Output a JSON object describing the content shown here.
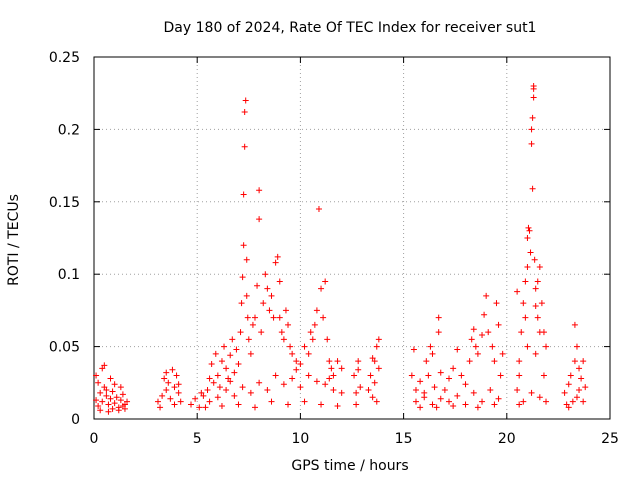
{
  "chart_data": {
    "type": "scatter",
    "title": "Day 180 of 2024, Rate Of TEC Index for receiver sut1",
    "xlabel": "GPS time / hours",
    "ylabel": "ROTI / TECUs",
    "xlim": [
      0,
      25
    ],
    "ylim": [
      0,
      0.25
    ],
    "xticks": [
      0,
      5,
      10,
      15,
      20,
      25
    ],
    "yticks": [
      0,
      0.05,
      0.1,
      0.15,
      0.2,
      0.25
    ],
    "xtick_labels": [
      "0",
      "5",
      "10",
      "15",
      "20",
      "25"
    ],
    "ytick_labels": [
      "0",
      "0.05",
      "0.1",
      "0.15",
      "0.2",
      "0.25"
    ],
    "grid": true,
    "marker": "+",
    "color": "#ff0000",
    "series": [
      {
        "name": "ROTI",
        "points": [
          [
            0.1,
            0.013
          ],
          [
            0.2,
            0.009
          ],
          [
            0.3,
            0.018
          ],
          [
            0.4,
            0.012
          ],
          [
            0.5,
            0.022
          ],
          [
            0.6,
            0.016
          ],
          [
            0.7,
            0.01
          ],
          [
            0.8,
            0.014
          ],
          [
            0.9,
            0.019
          ],
          [
            1.0,
            0.011
          ],
          [
            1.1,
            0.015
          ],
          [
            1.2,
            0.008
          ],
          [
            1.3,
            0.013
          ],
          [
            1.4,
            0.017
          ],
          [
            1.5,
            0.01
          ],
          [
            1.6,
            0.012
          ],
          [
            0.2,
            0.025
          ],
          [
            0.4,
            0.035
          ],
          [
            0.5,
            0.037
          ],
          [
            0.8,
            0.028
          ],
          [
            1.0,
            0.024
          ],
          [
            1.3,
            0.022
          ],
          [
            0.3,
            0.006
          ],
          [
            0.7,
            0.005
          ],
          [
            1.2,
            0.006
          ],
          [
            1.5,
            0.007
          ],
          [
            0.1,
            0.03
          ],
          [
            0.6,
            0.02
          ],
          [
            0.9,
            0.007
          ],
          [
            1.4,
            0.009
          ],
          [
            3.1,
            0.012
          ],
          [
            3.3,
            0.016
          ],
          [
            3.5,
            0.02
          ],
          [
            3.7,
            0.014
          ],
          [
            3.9,
            0.022
          ],
          [
            4.1,
            0.018
          ],
          [
            4.2,
            0.012
          ],
          [
            3.4,
            0.028
          ],
          [
            3.8,
            0.034
          ],
          [
            4.0,
            0.03
          ],
          [
            3.6,
            0.025
          ],
          [
            3.2,
            0.008
          ],
          [
            4.1,
            0.024
          ],
          [
            3.9,
            0.01
          ],
          [
            3.5,
            0.032
          ],
          [
            4.7,
            0.01
          ],
          [
            4.9,
            0.014
          ],
          [
            5.1,
            0.008
          ],
          [
            5.3,
            0.016
          ],
          [
            5.5,
            0.02
          ],
          [
            5.6,
            0.028
          ],
          [
            5.7,
            0.038
          ],
          [
            5.8,
            0.025
          ],
          [
            5.9,
            0.045
          ],
          [
            6.0,
            0.03
          ],
          [
            6.1,
            0.022
          ],
          [
            6.2,
            0.04
          ],
          [
            6.3,
            0.05
          ],
          [
            6.4,
            0.035
          ],
          [
            6.5,
            0.028
          ],
          [
            6.6,
            0.044
          ],
          [
            6.7,
            0.055
          ],
          [
            6.8,
            0.032
          ],
          [
            6.9,
            0.048
          ],
          [
            7.0,
            0.038
          ],
          [
            7.1,
            0.06
          ],
          [
            7.15,
            0.08
          ],
          [
            7.2,
            0.098
          ],
          [
            7.25,
            0.12
          ],
          [
            7.25,
            0.155
          ],
          [
            7.3,
            0.188
          ],
          [
            7.3,
            0.212
          ],
          [
            7.35,
            0.22
          ],
          [
            7.4,
            0.11
          ],
          [
            7.4,
            0.085
          ],
          [
            7.45,
            0.07
          ],
          [
            7.5,
            0.055
          ],
          [
            7.6,
            0.045
          ],
          [
            7.7,
            0.065
          ],
          [
            7.8,
            0.07
          ],
          [
            7.9,
            0.092
          ],
          [
            8.0,
            0.158
          ],
          [
            8.0,
            0.138
          ],
          [
            8.1,
            0.06
          ],
          [
            8.2,
            0.08
          ],
          [
            8.3,
            0.1
          ],
          [
            8.4,
            0.09
          ],
          [
            8.5,
            0.075
          ],
          [
            8.6,
            0.085
          ],
          [
            8.7,
            0.07
          ],
          [
            8.8,
            0.108
          ],
          [
            8.9,
            0.112
          ],
          [
            9.0,
            0.095
          ],
          [
            9.0,
            0.07
          ],
          [
            9.1,
            0.06
          ],
          [
            9.2,
            0.055
          ],
          [
            9.3,
            0.075
          ],
          [
            9.4,
            0.065
          ],
          [
            9.5,
            0.05
          ],
          [
            9.6,
            0.045
          ],
          [
            9.8,
            0.04
          ],
          [
            10.0,
            0.038
          ],
          [
            10.2,
            0.05
          ],
          [
            10.4,
            0.045
          ],
          [
            10.5,
            0.06
          ],
          [
            10.6,
            0.055
          ],
          [
            10.7,
            0.065
          ],
          [
            10.8,
            0.075
          ],
          [
            10.9,
            0.145
          ],
          [
            11.0,
            0.09
          ],
          [
            11.1,
            0.07
          ],
          [
            11.2,
            0.095
          ],
          [
            11.3,
            0.055
          ],
          [
            11.4,
            0.04
          ],
          [
            11.5,
            0.035
          ],
          [
            11.6,
            0.03
          ],
          [
            11.8,
            0.04
          ],
          [
            12.0,
            0.035
          ],
          [
            5.2,
            0.018
          ],
          [
            5.6,
            0.012
          ],
          [
            6.0,
            0.015
          ],
          [
            6.4,
            0.02
          ],
          [
            6.8,
            0.016
          ],
          [
            7.2,
            0.022
          ],
          [
            7.6,
            0.018
          ],
          [
            8.0,
            0.025
          ],
          [
            8.4,
            0.02
          ],
          [
            8.8,
            0.03
          ],
          [
            9.2,
            0.024
          ],
          [
            9.6,
            0.028
          ],
          [
            10.0,
            0.022
          ],
          [
            10.4,
            0.03
          ],
          [
            10.8,
            0.026
          ],
          [
            11.2,
            0.024
          ],
          [
            11.6,
            0.02
          ],
          [
            12.0,
            0.018
          ],
          [
            5.4,
            0.008
          ],
          [
            6.2,
            0.009
          ],
          [
            7.0,
            0.01
          ],
          [
            7.8,
            0.008
          ],
          [
            8.6,
            0.012
          ],
          [
            9.4,
            0.01
          ],
          [
            10.2,
            0.012
          ],
          [
            11.0,
            0.01
          ],
          [
            11.8,
            0.009
          ],
          [
            6.6,
            0.026
          ],
          [
            9.8,
            0.034
          ],
          [
            11.4,
            0.028
          ],
          [
            12.6,
            0.03
          ],
          [
            12.7,
            0.018
          ],
          [
            12.8,
            0.04
          ],
          [
            12.9,
            0.022
          ],
          [
            12.7,
            0.01
          ],
          [
            12.8,
            0.034
          ],
          [
            13.3,
            0.02
          ],
          [
            13.4,
            0.03
          ],
          [
            13.5,
            0.015
          ],
          [
            13.6,
            0.04
          ],
          [
            13.7,
            0.05
          ],
          [
            13.8,
            0.035
          ],
          [
            13.6,
            0.025
          ],
          [
            13.8,
            0.055
          ],
          [
            13.7,
            0.012
          ],
          [
            13.5,
            0.042
          ],
          [
            15.4,
            0.03
          ],
          [
            15.5,
            0.048
          ],
          [
            15.6,
            0.02
          ],
          [
            15.8,
            0.026
          ],
          [
            16.0,
            0.018
          ],
          [
            16.1,
            0.04
          ],
          [
            16.2,
            0.03
          ],
          [
            16.3,
            0.05
          ],
          [
            16.4,
            0.045
          ],
          [
            16.5,
            0.022
          ],
          [
            16.7,
            0.07
          ],
          [
            16.7,
            0.06
          ],
          [
            16.8,
            0.032
          ],
          [
            17.0,
            0.02
          ],
          [
            17.2,
            0.028
          ],
          [
            17.4,
            0.035
          ],
          [
            17.6,
            0.048
          ],
          [
            17.8,
            0.03
          ],
          [
            18.0,
            0.024
          ],
          [
            18.2,
            0.04
          ],
          [
            18.3,
            0.055
          ],
          [
            18.4,
            0.062
          ],
          [
            18.5,
            0.05
          ],
          [
            18.6,
            0.045
          ],
          [
            18.8,
            0.058
          ],
          [
            18.9,
            0.072
          ],
          [
            19.0,
            0.085
          ],
          [
            19.1,
            0.06
          ],
          [
            19.3,
            0.05
          ],
          [
            19.4,
            0.04
          ],
          [
            19.5,
            0.08
          ],
          [
            19.6,
            0.065
          ],
          [
            19.7,
            0.03
          ],
          [
            19.8,
            0.045
          ],
          [
            15.6,
            0.012
          ],
          [
            16.0,
            0.015
          ],
          [
            16.4,
            0.01
          ],
          [
            16.8,
            0.014
          ],
          [
            17.2,
            0.012
          ],
          [
            17.6,
            0.016
          ],
          [
            18.0,
            0.01
          ],
          [
            18.4,
            0.018
          ],
          [
            18.8,
            0.012
          ],
          [
            19.2,
            0.02
          ],
          [
            19.6,
            0.014
          ],
          [
            15.8,
            0.008
          ],
          [
            16.6,
            0.008
          ],
          [
            17.4,
            0.009
          ],
          [
            18.6,
            0.008
          ],
          [
            19.4,
            0.01
          ],
          [
            20.5,
            0.02
          ],
          [
            20.6,
            0.04
          ],
          [
            20.7,
            0.06
          ],
          [
            20.8,
            0.08
          ],
          [
            20.9,
            0.095
          ],
          [
            20.9,
            0.07
          ],
          [
            21.0,
            0.105
          ],
          [
            21.0,
            0.125
          ],
          [
            21.05,
            0.132
          ],
          [
            21.1,
            0.13
          ],
          [
            21.15,
            0.115
          ],
          [
            21.2,
            0.19
          ],
          [
            21.2,
            0.2
          ],
          [
            21.25,
            0.208
          ],
          [
            21.25,
            0.159
          ],
          [
            21.3,
            0.228
          ],
          [
            21.3,
            0.222
          ],
          [
            21.3,
            0.23
          ],
          [
            21.35,
            0.11
          ],
          [
            21.4,
            0.09
          ],
          [
            21.5,
            0.095
          ],
          [
            21.5,
            0.07
          ],
          [
            21.6,
            0.105
          ],
          [
            21.6,
            0.06
          ],
          [
            21.7,
            0.08
          ],
          [
            21.8,
            0.06
          ],
          [
            21.9,
            0.05
          ],
          [
            20.6,
            0.03
          ],
          [
            21.0,
            0.05
          ],
          [
            21.4,
            0.045
          ],
          [
            21.8,
            0.03
          ],
          [
            20.8,
            0.012
          ],
          [
            21.2,
            0.018
          ],
          [
            21.6,
            0.015
          ],
          [
            20.6,
            0.01
          ],
          [
            21.9,
            0.012
          ],
          [
            20.5,
            0.088
          ],
          [
            21.4,
            0.078
          ],
          [
            22.8,
            0.018
          ],
          [
            23.0,
            0.024
          ],
          [
            23.1,
            0.03
          ],
          [
            23.2,
            0.012
          ],
          [
            23.3,
            0.04
          ],
          [
            23.3,
            0.065
          ],
          [
            23.4,
            0.05
          ],
          [
            23.5,
            0.035
          ],
          [
            23.6,
            0.028
          ],
          [
            23.7,
            0.04
          ],
          [
            23.8,
            0.022
          ],
          [
            22.9,
            0.01
          ],
          [
            23.4,
            0.015
          ],
          [
            23.7,
            0.012
          ],
          [
            23.0,
            0.008
          ],
          [
            23.5,
            0.02
          ]
        ]
      }
    ]
  }
}
